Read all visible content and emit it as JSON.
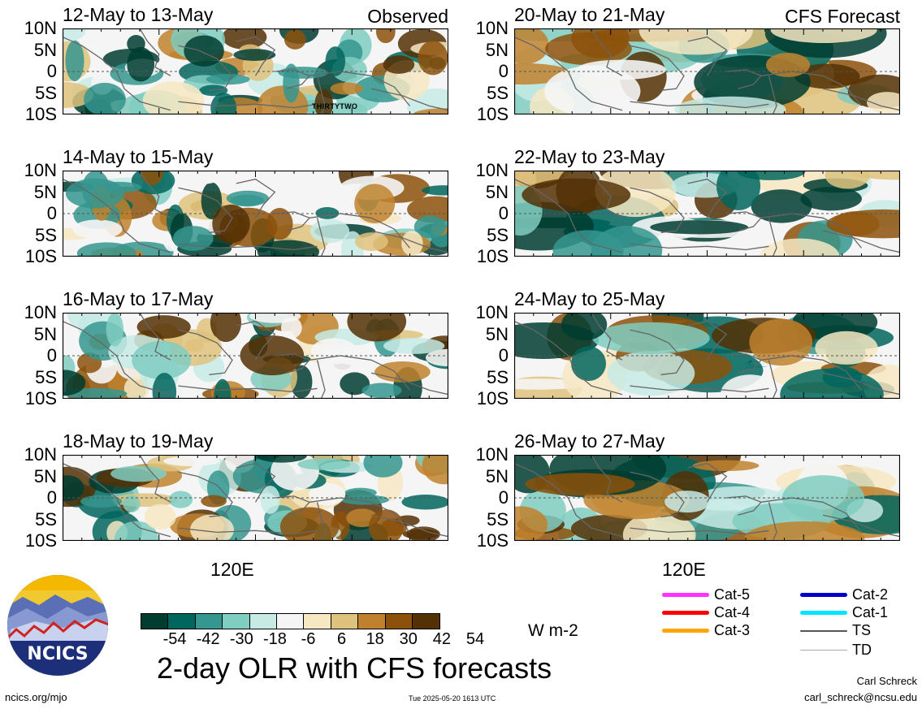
{
  "panels": [
    {
      "id": "p1",
      "title": "12-May to 13-May",
      "corner": "Observed",
      "storm_label": "THIRTYTWO"
    },
    {
      "id": "p2",
      "title": "14-May to 15-May",
      "corner": "",
      "storm_label": ""
    },
    {
      "id": "p3",
      "title": "16-May to 17-May",
      "corner": "",
      "storm_label": ""
    },
    {
      "id": "p4",
      "title": "18-May to 19-May",
      "corner": "",
      "storm_label": ""
    },
    {
      "id": "p5",
      "title": "20-May to 21-May",
      "corner": "CFS Forecast",
      "storm_label": ""
    },
    {
      "id": "p6",
      "title": "22-May to 23-May",
      "corner": "",
      "storm_label": ""
    },
    {
      "id": "p7",
      "title": "24-May to 25-May",
      "corner": "",
      "storm_label": ""
    },
    {
      "id": "p8",
      "title": "26-May to 27-May",
      "corner": "",
      "storm_label": ""
    }
  ],
  "y_ticks": [
    "10N",
    "5N",
    "0",
    "5S",
    "10S"
  ],
  "x_tick": "120E",
  "colorbar": {
    "colors": [
      "#003c30",
      "#01665e",
      "#35978f",
      "#80cdc1",
      "#c7eae5",
      "#f5f5f5",
      "#f6e8c3",
      "#dfc27d",
      "#bf812d",
      "#8c510a",
      "#543005"
    ],
    "labels": [
      "-54",
      "-42",
      "-30",
      "-18",
      "-6",
      "6",
      "18",
      "30",
      "42",
      "54"
    ],
    "units": "W m-2"
  },
  "title": "2-day OLR with CFS forecasts",
  "legend": [
    {
      "label": "Cat-5",
      "color": "#ff33ff"
    },
    {
      "label": "Cat-4",
      "color": "#ff0000"
    },
    {
      "label": "Cat-3",
      "color": "#ffa500"
    },
    {
      "label": "Cat-2",
      "color": "#0000cc"
    },
    {
      "label": "Cat-1",
      "color": "#00e5ff"
    },
    {
      "label": "TS",
      "color": "#555555"
    },
    {
      "label": "TD",
      "color": "#aaaaaa"
    }
  ],
  "logo_text": "NCICS",
  "footer": {
    "url": "ncics.org/mjo",
    "timestamp": "Tue 2025-05-20 1613 UTC",
    "author": "Carl Schreck",
    "email": "carl_schreck@ncsu.edu"
  }
}
